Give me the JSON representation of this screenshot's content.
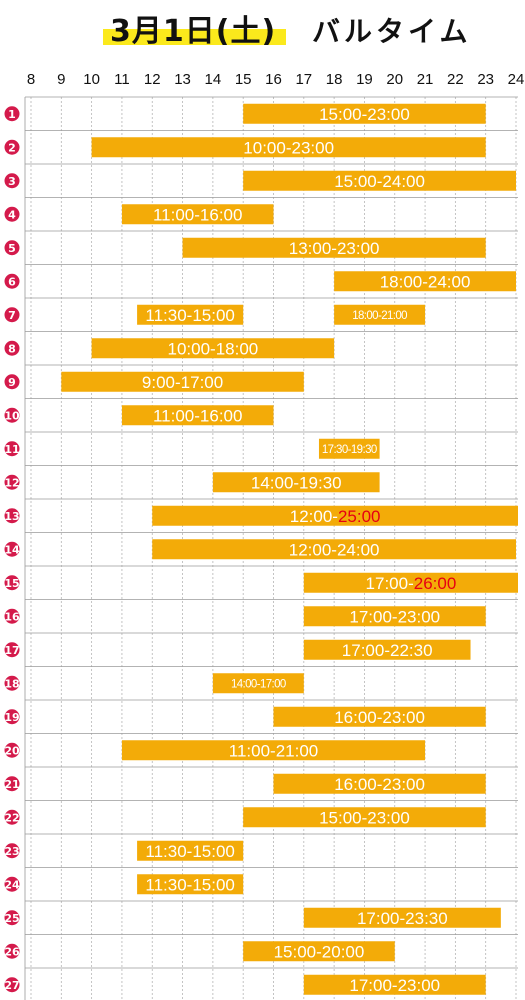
{
  "title": {
    "date": "3月1日(土)",
    "name": "バルタイム"
  },
  "colors": {
    "bar": "#f3ab08",
    "badge": "#d41a4b",
    "highlight": "#fbe91c",
    "over_midnight": "#e60012"
  },
  "chart_data": {
    "type": "bar",
    "orientation": "horizontal-range",
    "x_ticks": [
      8,
      9,
      10,
      11,
      12,
      13,
      14,
      15,
      16,
      17,
      18,
      19,
      20,
      21,
      22,
      23,
      24
    ],
    "xlim": [
      8,
      24
    ],
    "grid": "vertical dashed at each hour",
    "rows": [
      {
        "num": "1",
        "bars": [
          {
            "start": 15,
            "end": 23,
            "label": "15:00-23:00"
          }
        ]
      },
      {
        "num": "2",
        "bars": [
          {
            "start": 10,
            "end": 23,
            "label": "10:00-23:00"
          }
        ]
      },
      {
        "num": "3",
        "bars": [
          {
            "start": 15,
            "end": 24,
            "label": "15:00-24:00"
          }
        ]
      },
      {
        "num": "4",
        "bars": [
          {
            "start": 11,
            "end": 16,
            "label": "11:00-16:00"
          }
        ]
      },
      {
        "num": "5",
        "bars": [
          {
            "start": 13,
            "end": 23,
            "label": "13:00-23:00"
          }
        ]
      },
      {
        "num": "6",
        "bars": [
          {
            "start": 18,
            "end": 24,
            "label": "18:00-24:00"
          }
        ]
      },
      {
        "num": "7",
        "bars": [
          {
            "start": 11.5,
            "end": 15,
            "label": "11:30-15:00"
          },
          {
            "start": 18,
            "end": 21,
            "label": "18:00-21:00",
            "small": true
          }
        ]
      },
      {
        "num": "8",
        "bars": [
          {
            "start": 10,
            "end": 18,
            "label": "10:00-18:00"
          }
        ]
      },
      {
        "num": "9",
        "bars": [
          {
            "start": 9,
            "end": 17,
            "label": "9:00-17:00"
          }
        ]
      },
      {
        "num": "10",
        "bars": [
          {
            "start": 11,
            "end": 16,
            "label": "11:00-16:00"
          }
        ]
      },
      {
        "num": "11",
        "bars": [
          {
            "start": 17.5,
            "end": 19.5,
            "label": "17:30-19:30",
            "small": true
          }
        ]
      },
      {
        "num": "12",
        "bars": [
          {
            "start": 14,
            "end": 19.5,
            "label": "14:00-19:30"
          }
        ]
      },
      {
        "num": "13",
        "bars": [
          {
            "start": 12,
            "end": 25,
            "label": "12:00-",
            "label_red": "25:00"
          }
        ]
      },
      {
        "num": "14",
        "bars": [
          {
            "start": 12,
            "end": 24,
            "label": "12:00-24:00"
          }
        ]
      },
      {
        "num": "15",
        "bars": [
          {
            "start": 17,
            "end": 26,
            "label": "17:00-",
            "label_red": "26:00"
          }
        ]
      },
      {
        "num": "16",
        "bars": [
          {
            "start": 17,
            "end": 23,
            "label": "17:00-23:00"
          }
        ]
      },
      {
        "num": "17",
        "bars": [
          {
            "start": 17,
            "end": 22.5,
            "label": "17:00-22:30"
          }
        ]
      },
      {
        "num": "18",
        "bars": [
          {
            "start": 14,
            "end": 17,
            "label": "14:00-17:00",
            "small": true
          }
        ]
      },
      {
        "num": "19",
        "bars": [
          {
            "start": 16,
            "end": 23,
            "label": "16:00-23:00"
          }
        ]
      },
      {
        "num": "20",
        "bars": [
          {
            "start": 11,
            "end": 21,
            "label": "11:00-21:00"
          }
        ]
      },
      {
        "num": "21",
        "bars": [
          {
            "start": 16,
            "end": 23,
            "label": "16:00-23:00"
          }
        ]
      },
      {
        "num": "22",
        "bars": [
          {
            "start": 15,
            "end": 23,
            "label": "15:00-23:00"
          }
        ]
      },
      {
        "num": "23",
        "bars": [
          {
            "start": 11.5,
            "end": 15,
            "label": "11:30-15:00"
          }
        ]
      },
      {
        "num": "24",
        "bars": [
          {
            "start": 11.5,
            "end": 15,
            "label": "11:30-15:00"
          }
        ]
      },
      {
        "num": "25",
        "bars": [
          {
            "start": 17,
            "end": 23.5,
            "label": "17:00-23:30"
          }
        ]
      },
      {
        "num": "26",
        "bars": [
          {
            "start": 15,
            "end": 20,
            "label": "15:00-20:00"
          }
        ]
      },
      {
        "num": "27",
        "bars": [
          {
            "start": 17,
            "end": 23,
            "label": "17:00-23:00"
          }
        ]
      }
    ]
  }
}
